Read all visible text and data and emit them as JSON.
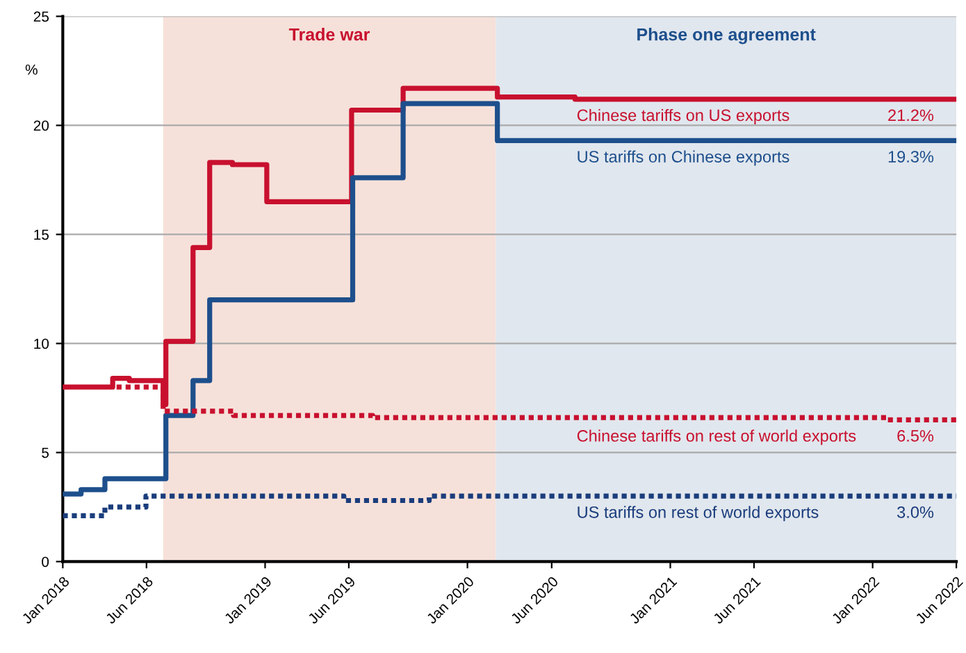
{
  "chart_data": {
    "type": "step",
    "ylabel": "%",
    "xlim": [
      "2018-01-01",
      "2022-06-01"
    ],
    "xticks": [
      {
        "value": "2018-01-01",
        "label": "Jan 2018"
      },
      {
        "value": "2018-06-01",
        "label": "Jun 2018"
      },
      {
        "value": "2019-01-01",
        "label": "Jan 2019"
      },
      {
        "value": "2019-06-01",
        "label": "Jun 2019"
      },
      {
        "value": "2020-01-01",
        "label": "Jan 2020"
      },
      {
        "value": "2020-06-01",
        "label": "Jun 2020"
      },
      {
        "value": "2021-01-01",
        "label": "Jan 2021"
      },
      {
        "value": "2021-06-01",
        "label": "Jun 2021"
      },
      {
        "value": "2022-01-01",
        "label": "Jan 2022"
      },
      {
        "value": "2022-06-01",
        "label": "Jun 2022"
      }
    ],
    "ylim": [
      0,
      25
    ],
    "yticks": [
      0,
      5,
      10,
      15,
      20,
      25
    ],
    "grid": "y",
    "legend": false,
    "bands": [
      {
        "axis": "x",
        "from": "2018-07-01",
        "to": "2020-02-21",
        "label": "Trade war",
        "color": "#f6e1da"
      },
      {
        "axis": "x",
        "from": "2020-02-21",
        "to": "2022-06-01",
        "label": "Phase one agreement",
        "color": "#e1e7ee"
      }
    ],
    "series": [
      {
        "name": "Chinese tariffs on US exports",
        "color": "#c8102e",
        "line_style": "solid",
        "x": [
          "2018-01-01",
          "2018-04-01",
          "2018-05-01",
          "2018-07-01",
          "2018-07-06",
          "2018-08-24",
          "2018-09-23",
          "2018-11-03",
          "2019-01-04",
          "2019-06-06",
          "2019-09-07",
          "2020-02-24",
          "2020-07-13",
          "2022-06-01"
        ],
        "values": [
          8.0,
          8.4,
          8.3,
          7.2,
          10.1,
          14.4,
          18.3,
          18.2,
          16.5,
          20.7,
          21.7,
          21.3,
          21.2,
          21.2
        ],
        "value_labels": [
          null,
          null,
          null,
          null,
          null,
          null,
          null,
          null,
          null,
          null,
          null,
          null,
          null,
          "21.2%"
        ]
      },
      {
        "name": "US tariffs on Chinese exports",
        "color": "#1d4f8c",
        "line_style": "solid",
        "x": [
          "2018-01-01",
          "2018-02-03",
          "2018-03-18",
          "2018-07-06",
          "2018-08-24",
          "2018-09-23",
          "2019-06-08",
          "2019-09-07",
          "2020-02-24",
          "2022-06-01"
        ],
        "values": [
          3.1,
          3.3,
          3.8,
          6.7,
          8.3,
          12.0,
          17.6,
          21.0,
          19.3,
          19.3
        ],
        "value_labels": [
          null,
          null,
          null,
          null,
          null,
          null,
          null,
          null,
          null,
          "19.3%"
        ]
      },
      {
        "name": "Chinese tariffs on rest of world exports",
        "color": "#c8102e",
        "line_style": "dotted",
        "x": [
          "2018-04-08",
          "2018-07-01",
          "2018-11-05",
          "2019-07-14",
          "2022-01-26",
          "2022-06-01"
        ],
        "values": [
          8.0,
          6.9,
          6.7,
          6.6,
          6.5,
          6.5
        ],
        "value_labels": [
          null,
          null,
          null,
          null,
          null,
          "6.5%"
        ]
      },
      {
        "name": "US tariffs on rest of world exports",
        "color": "#1a3d7c",
        "line_style": "dotted",
        "x": [
          "2018-01-01",
          "2018-03-18",
          "2018-05-31",
          "2019-05-23",
          "2019-10-24",
          "2022-06-01"
        ],
        "values": [
          2.1,
          2.5,
          3.0,
          2.8,
          3.0,
          3.0
        ],
        "value_labels": [
          null,
          null,
          null,
          null,
          null,
          "3.0%"
        ]
      }
    ]
  }
}
